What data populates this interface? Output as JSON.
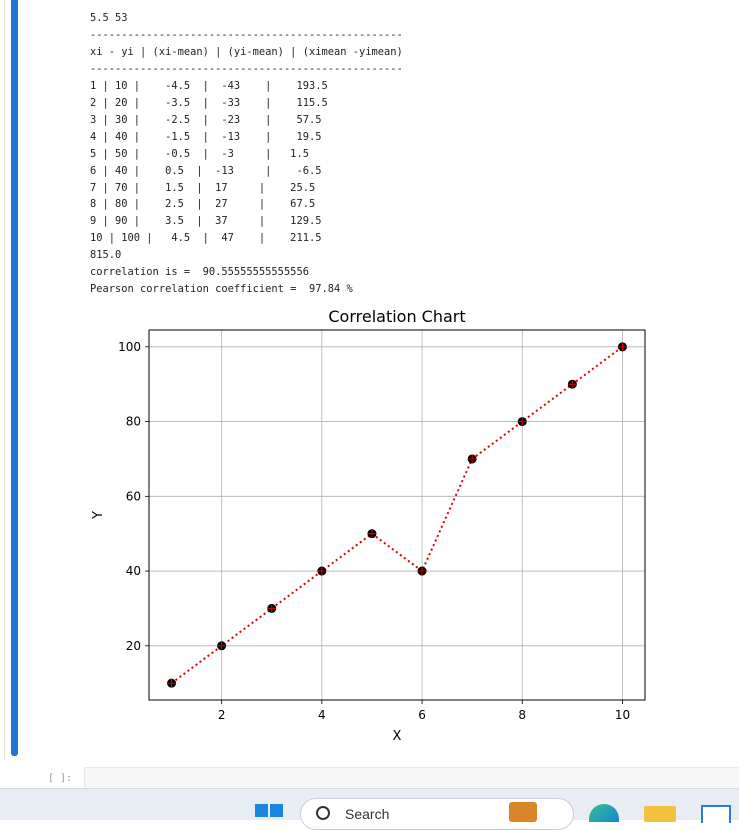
{
  "output_lines": [
    "5.5 53",
    "--------------------------------------------------",
    "xi - yi | (xi-mean) | (yi-mean) | (ximean -yimean)",
    "--------------------------------------------------",
    "1 | 10 |    -4.5  |  -43    |    193.5",
    "2 | 20 |    -3.5  |  -33    |    115.5",
    "3 | 30 |    -2.5  |  -23    |    57.5",
    "4 | 40 |    -1.5  |  -13    |    19.5",
    "5 | 50 |    -0.5  |  -3     |   1.5",
    "6 | 40 |    0.5  |  -13     |    -6.5",
    "7 | 70 |    1.5  |  17     |    25.5",
    "8 | 80 |    2.5  |  27     |    67.5",
    "9 | 90 |    3.5  |  37     |    129.5",
    "10 | 100 |   4.5  |  47    |    211.5",
    "815.0",
    "correlation is =  90.55555555555556",
    "Pearson correlation coefficient =  97.84 %"
  ],
  "chart_data": {
    "type": "scatter",
    "title": "Correlation Chart",
    "xlabel": "X",
    "ylabel": "Y",
    "x": [
      1,
      2,
      3,
      4,
      5,
      6,
      7,
      8,
      9,
      10
    ],
    "y": [
      10,
      20,
      30,
      40,
      50,
      40,
      70,
      80,
      90,
      100
    ],
    "xlim": [
      0.55,
      10.45
    ],
    "ylim": [
      5.5,
      104.5
    ],
    "xticks": [
      2,
      4,
      6,
      8,
      10
    ],
    "yticks": [
      20,
      40,
      60,
      80,
      100
    ],
    "grid": true,
    "line_style": "dotted",
    "line_color": "#e00000",
    "marker_color": "#000000"
  },
  "next_cell": {
    "prompt": "[ ]:"
  },
  "taskbar": {
    "search_label": "Search",
    "icons": [
      "windows-start-icon",
      "search-icon",
      "edge-browser-icon",
      "file-explorer-icon",
      "store-icon"
    ]
  }
}
